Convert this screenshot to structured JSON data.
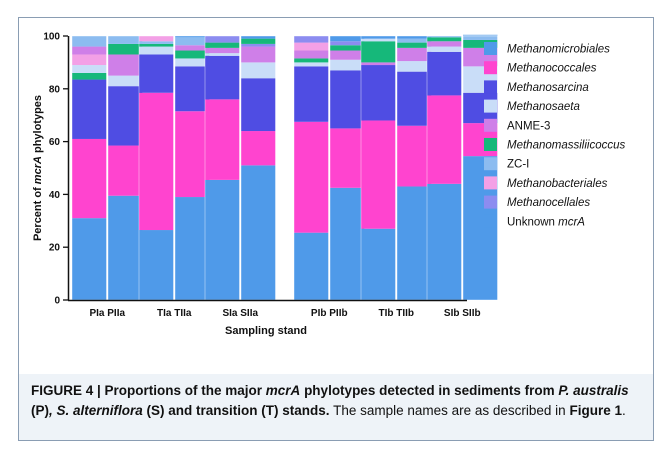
{
  "chart_data": {
    "type": "bar",
    "stacked": true,
    "ylabel_parts": [
      "Percent of ",
      "mcrA",
      " phylotypes"
    ],
    "xlabel": "Sampling stand",
    "ylim": [
      0,
      100
    ],
    "yticks": [
      0,
      20,
      40,
      60,
      80,
      100
    ],
    "groups": [
      {
        "label": "PIa PIIa",
        "bars": [
          "PIa",
          "PIIa"
        ]
      },
      {
        "label": "TIa TIIa",
        "bars": [
          "TIa",
          "TIIa"
        ]
      },
      {
        "label": "SIa SIIa",
        "bars": [
          "SIa",
          "SIIa"
        ]
      },
      {
        "label": "PIb PIIb",
        "bars": [
          "PIb",
          "PIIb"
        ]
      },
      {
        "label": "TIb TIIb",
        "bars": [
          "TIb",
          "TIIb"
        ]
      },
      {
        "label": "SIb SIIb",
        "bars": [
          "SIb",
          "SIIb"
        ]
      }
    ],
    "categories": [
      "PIa",
      "PIIa",
      "TIa",
      "TIIa",
      "SIa",
      "SIIa",
      "PIb",
      "PIIb",
      "TIb",
      "TIIb",
      "SIb",
      "SIIb"
    ],
    "series": [
      {
        "name": "Unknown mcrA",
        "color": "#4f9ae9",
        "values": [
          31,
          39.5,
          26.5,
          39,
          45.5,
          51,
          25.5,
          42.5,
          27,
          43,
          44,
          54.5
        ]
      },
      {
        "name": "Methanocellales",
        "color": "#8c8cf0",
        "values": [
          0,
          0,
          0,
          0,
          0,
          0,
          0,
          0,
          0,
          0,
          0,
          0
        ]
      },
      {
        "name": "Methanobacteriales",
        "color": "#f3a0e6",
        "values": [
          0,
          0,
          0,
          0,
          0,
          0,
          0,
          0,
          0,
          0,
          0,
          0
        ]
      },
      {
        "name": "ZC-I",
        "color": "#8cbcf0",
        "values": [
          0,
          0,
          0,
          0,
          0,
          0,
          0,
          0,
          0,
          0,
          0,
          0
        ]
      },
      {
        "name": "Methanomassiliicoccus",
        "color": "#16b87a",
        "values": [
          0,
          0,
          0,
          0,
          0,
          0,
          0,
          0,
          0,
          0,
          0,
          0
        ]
      },
      {
        "name": "ANME-3",
        "color": "#cf7fe8",
        "values": [
          0,
          0,
          0,
          0,
          0,
          0,
          0,
          0,
          0,
          0,
          0,
          0
        ]
      },
      {
        "name": "Methanosaeta",
        "color": "#c9ddf8",
        "values": [
          0,
          0,
          0,
          0,
          0,
          0,
          0,
          0,
          0,
          0,
          0,
          0
        ]
      },
      {
        "name": "Methanosarcina",
        "color": "#4f4de3",
        "values": [
          22.5,
          22.5,
          14.5,
          17,
          16.5,
          20,
          21,
          22,
          21,
          20.5,
          16.5,
          11.5
        ]
      },
      {
        "name": "Methanococcales",
        "color": "#ff44cf",
        "values": [
          30,
          19,
          52,
          32.5,
          30.5,
          13,
          42,
          22.5,
          41,
          23,
          33.5,
          12.5
        ]
      },
      {
        "name": "Methanomicrobiales",
        "color": "#4f9ae9",
        "values": [
          0,
          0,
          0,
          0,
          0,
          0,
          0,
          0,
          0,
          0,
          0,
          0
        ]
      }
    ],
    "series_order_note": "",
    "legend": {
      "position": "right",
      "entries": [
        {
          "label": "Methanomicrobiales",
          "italic": true,
          "color": "#4f9ae9"
        },
        {
          "label": "Methanococcales",
          "italic": true,
          "color": "#ff44cf"
        },
        {
          "label": "Methanosarcina",
          "italic": true,
          "color": "#4f4de3"
        },
        {
          "label": "Methanosaeta",
          "italic": true,
          "color": "#c9ddf8"
        },
        {
          "label": "ANME-3",
          "italic": false,
          "color": "#cf7fe8"
        },
        {
          "label": "Methanomassiliicoccus",
          "italic": true,
          "color": "#16b87a"
        },
        {
          "label": "ZC-I",
          "italic": false,
          "color": "#8cbcf0"
        },
        {
          "label": "Methanobacteriales",
          "italic": true,
          "color": "#f3a0e6"
        },
        {
          "label": "Methanocellales",
          "italic": true,
          "color": "#8c8cf0"
        },
        {
          "label": "Unknown mcrA",
          "italic": false,
          "italic_part": "mcrA",
          "color": "#4f9ae9"
        }
      ]
    },
    "upper_stack": [
      {
        "bar": "PIa",
        "segs": [
          [
            "#16b87a",
            2.5
          ],
          [
            "#c9ddf8",
            3
          ],
          [
            "#f3a0e6",
            4
          ],
          [
            "#cf7fe8",
            3
          ],
          [
            "#8cbcf0",
            4
          ]
        ]
      },
      {
        "bar": "PIIa",
        "segs": [
          [
            "#c9ddf8",
            4
          ],
          [
            "#cf7fe8",
            8
          ],
          [
            "#16b87a",
            4
          ],
          [
            "#4f4de3",
            0
          ],
          [
            "#8cbcf0",
            3
          ]
        ]
      },
      {
        "bar": "TIa",
        "segs": [
          [
            "#c9ddf8",
            3
          ],
          [
            "#16b87a",
            1
          ],
          [
            "#8cbcf0",
            1
          ],
          [
            "#f3a0e6",
            2
          ]
        ]
      },
      {
        "bar": "TIIa",
        "segs": [
          [
            "#c9ddf8",
            3
          ],
          [
            "#16b87a",
            3
          ],
          [
            "#cf7fe8",
            2
          ],
          [
            "#8cbcf0",
            3
          ]
        ]
      },
      {
        "bar": "SIa",
        "segs": [
          [
            "#c9ddf8",
            1
          ],
          [
            "#cf7fe8",
            2
          ],
          [
            "#16b87a",
            2
          ],
          [
            "#8c8cf0",
            2.5
          ]
        ]
      },
      {
        "bar": "SIIa",
        "segs": [
          [
            "#c9ddf8",
            6
          ],
          [
            "#cf7fe8",
            6
          ],
          [
            "#8c8cf0",
            1
          ],
          [
            "#16b87a",
            2
          ]
        ]
      },
      {
        "bar": "PIb",
        "segs": [
          [
            "#c9ddf8",
            1.5
          ],
          [
            "#16b87a",
            1.5
          ],
          [
            "#cf7fe8",
            3
          ],
          [
            "#f3a0e6",
            3
          ],
          [
            "#8c8cf0",
            2.5
          ]
        ]
      },
      {
        "bar": "PIIb",
        "segs": [
          [
            "#c9ddf8",
            4
          ],
          [
            "#cf7fe8",
            3.5
          ],
          [
            "#16b87a",
            2
          ],
          [
            "#8c8cf0",
            1.5
          ]
        ]
      },
      {
        "bar": "TIb",
        "segs": [
          [
            "#cf7fe8",
            1
          ],
          [
            "#16b87a",
            8
          ],
          [
            "#c9ddf8",
            1
          ]
        ]
      },
      {
        "bar": "TIIb",
        "segs": [
          [
            "#c9ddf8",
            4
          ],
          [
            "#cf7fe8",
            5
          ],
          [
            "#16b87a",
            2
          ],
          [
            "#8cbcf0",
            1.5
          ]
        ]
      },
      {
        "bar": "SIb",
        "segs": [
          [
            "#c9ddf8",
            2
          ],
          [
            "#cf7fe8",
            2
          ],
          [
            "#16b87a",
            1.5
          ],
          [
            "#8cbcf0",
            0.5
          ]
        ]
      },
      {
        "bar": "SIIb",
        "segs": [
          [
            "#c9ddf8",
            10
          ],
          [
            "#cf7fe8",
            7
          ],
          [
            "#16b87a",
            3
          ],
          [
            "#8cbcf0",
            2
          ]
        ]
      }
    ]
  },
  "caption": {
    "fig": "FIGURE 4 | Proportions of the major ",
    "fig_it": "mcrA",
    "fig2": " phylotypes detected in sediments from ",
    "sp1": "P. australis",
    "t1": " (P)",
    "c1": ", ",
    "sp2": "S. alterniflora",
    "t2": " (S) and transition (T) stands.",
    "rest": " The sample names are as described in ",
    "ref": "Figure 1",
    "end": "."
  }
}
